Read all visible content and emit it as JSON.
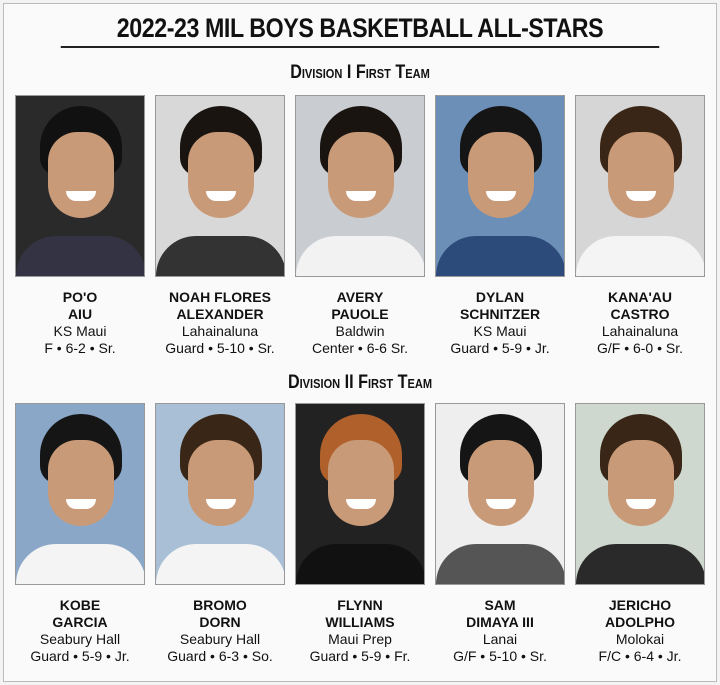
{
  "title": "2022-23 MIL BOYS BASKETBALL ALL-STARS",
  "divisions": [
    {
      "heading": "Division I First Team",
      "players": [
        {
          "first": "PO'O",
          "last": "AIU",
          "school": "KS Maui",
          "details": "F • 6-2 • Sr.",
          "bg": "#2a2a2a",
          "hair": "#111",
          "shirt": "#334"
        },
        {
          "first": "NOAH FLORES",
          "last": "ALEXANDER",
          "school": "Lahainaluna",
          "details": "Guard • 5-10 • Sr.",
          "bg": "#d8d8d8",
          "hair": "#1a1410",
          "shirt": "#333"
        },
        {
          "first": "AVERY",
          "last": "PAUOLE",
          "school": "Baldwin",
          "details": "Center • 6-6 Sr.",
          "bg": "#c9cdd2",
          "hair": "#1a1410",
          "shirt": "#f2f2f2"
        },
        {
          "first": "DYLAN",
          "last": "SCHNITZER",
          "school": "KS Maui",
          "details": "Guard • 5-9 • Jr.",
          "bg": "#6c8fb8",
          "hair": "#151515",
          "shirt": "#2c4a7a"
        },
        {
          "first": "KANA'AU",
          "last": "CASTRO",
          "school": "Lahainaluna",
          "details": "G/F • 6-0 • Sr.",
          "bg": "#d6d6d6",
          "hair": "#3a2616",
          "shirt": "#f4f4f4"
        }
      ]
    },
    {
      "heading": "Division II First Team",
      "players": [
        {
          "first": "KOBE",
          "last": "GARCIA",
          "school": "Seabury Hall",
          "details": "Guard • 5-9 • Jr.",
          "bg": "#8aa7c8",
          "hair": "#151515",
          "shirt": "#f4f4f4"
        },
        {
          "first": "BROMO",
          "last": "DORN",
          "school": "Seabury Hall",
          "details": "Guard • 6-3 • So.",
          "bg": "#a9bfd6",
          "hair": "#3a2616",
          "shirt": "#f4f4f4"
        },
        {
          "first": "FLYNN",
          "last": "WILLIAMS",
          "school": "Maui Prep",
          "details": "Guard • 5-9 • Fr.",
          "bg": "#222",
          "hair": "#b0602a",
          "shirt": "#111"
        },
        {
          "first": "SAM",
          "last": "DIMAYA III",
          "school": "Lanai",
          "details": "G/F • 5-10 • Sr.",
          "bg": "#eeeeee",
          "hair": "#151515",
          "shirt": "#555"
        },
        {
          "first": "JERICHO",
          "last": "ADOLPHO",
          "school": "Molokai",
          "details": "F/C • 6-4 • Jr.",
          "bg": "#cfd8cf",
          "hair": "#3a2616",
          "shirt": "#2a2a2a"
        }
      ]
    }
  ]
}
